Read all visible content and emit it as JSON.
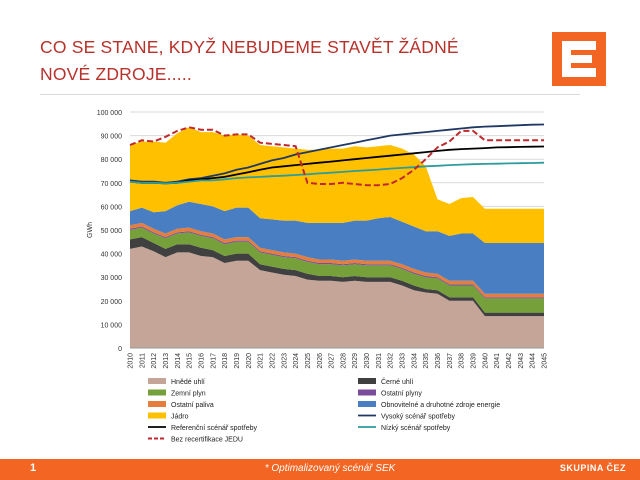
{
  "slide": {
    "title": "CO SE STANE, KDYŽ NEBUDEME STAVĚT ŽÁDNÉ NOVÉ ZDROJE.....",
    "page_number": "1",
    "footnote": "* Optimalizovaný scénář SEK",
    "brand": "SKUPINA ČEZ"
  },
  "colors": {
    "accent": "#f26522",
    "title": "#b8312a",
    "hnede_uhli": "#c4a597",
    "cerne_uhli": "#404040",
    "zemni_plyn": "#76a039",
    "ostatni_plyny": "#7b4b9c",
    "ostatni_paliva": "#e57e3c",
    "obnovitelne": "#4a7ec2",
    "jadro": "#ffc000",
    "vysoky": "#1f3864",
    "referencni": "#000000",
    "nizky": "#2e9c9c",
    "bez_recertifikace": "#c0282d"
  },
  "icons": {
    "logo": "cez-logo-icon"
  },
  "chart_data": {
    "type": "area",
    "ylabel": "GWh",
    "ylim": [
      0,
      100000
    ],
    "yticks": [
      "0",
      "10 000",
      "20 000",
      "30 000",
      "40 000",
      "50 000",
      "60 000",
      "70 000",
      "80 000",
      "90 000",
      "100 000"
    ],
    "x": [
      "2010",
      "2011",
      "2012",
      "2013",
      "2014",
      "2015",
      "2016",
      "2017",
      "2018",
      "2019",
      "2020",
      "2021",
      "2022",
      "2023",
      "2024",
      "2025",
      "2026",
      "2027",
      "2028",
      "2029",
      "2030",
      "2031",
      "2032",
      "2033",
      "2034",
      "2035",
      "2036",
      "2037",
      "2038",
      "2039",
      "2040",
      "2041",
      "2042",
      "2043",
      "2044",
      "2045"
    ],
    "stacked_series": [
      {
        "name": "Hnědé uhlí",
        "color_key": "hnede_uhli",
        "values": [
          42000,
          43000,
          41000,
          38500,
          40500,
          40500,
          39000,
          38500,
          36000,
          37000,
          37000,
          33000,
          32000,
          31000,
          30500,
          29000,
          28500,
          28500,
          28000,
          28500,
          28000,
          28000,
          28000,
          26500,
          24500,
          23500,
          23000,
          20000,
          20000,
          20000,
          13500,
          13500,
          13500,
          13500,
          13500,
          13500
        ]
      },
      {
        "name": "Černé uhlí",
        "color_key": "cerne_uhli",
        "values": [
          4000,
          4000,
          3500,
          3500,
          3500,
          3500,
          3500,
          3000,
          3000,
          3000,
          3000,
          2500,
          2500,
          2500,
          2500,
          2500,
          2000,
          2000,
          2000,
          2000,
          2000,
          2000,
          2000,
          2000,
          2000,
          1500,
          1500,
          1500,
          1500,
          1500,
          1500,
          1500,
          1500,
          1500,
          1500,
          1500
        ]
      },
      {
        "name": "Zemní plyn",
        "color_key": "zemni_plyn",
        "values": [
          4000,
          4000,
          4000,
          4500,
          4500,
          5000,
          5000,
          5000,
          5000,
          5000,
          5000,
          5000,
          5000,
          5000,
          5000,
          5000,
          5000,
          5000,
          5000,
          5000,
          5000,
          5000,
          5000,
          5000,
          5000,
          5000,
          5000,
          5000,
          5000,
          5000,
          6000,
          6000,
          6000,
          6000,
          6000,
          6000
        ]
      },
      {
        "name": "Ostatní plyny",
        "color_key": "ostatni_plyny",
        "values": [
          500,
          500,
          500,
          500,
          500,
          500,
          500,
          500,
          500,
          500,
          500,
          500,
          500,
          500,
          500,
          500,
          500,
          500,
          500,
          500,
          500,
          500,
          500,
          500,
          500,
          500,
          500,
          500,
          500,
          500,
          500,
          500,
          500,
          500,
          500,
          500
        ]
      },
      {
        "name": "Ostatní paliva",
        "color_key": "ostatni_paliva",
        "values": [
          1500,
          1500,
          1500,
          1500,
          1500,
          1500,
          1500,
          1500,
          1500,
          1500,
          1500,
          1500,
          1500,
          1500,
          1500,
          1500,
          1500,
          1500,
          1500,
          1500,
          1500,
          1500,
          1500,
          1500,
          1500,
          1500,
          1500,
          1500,
          1500,
          1500,
          1500,
          1500,
          1500,
          1500,
          1500,
          1500
        ]
      },
      {
        "name": "Obnovitelné a druhotné zdroje energie",
        "color_key": "obnovitelne",
        "values": [
          6000,
          6500,
          7000,
          9500,
          10000,
          11000,
          11500,
          11500,
          12000,
          12500,
          12500,
          12500,
          13000,
          13500,
          14000,
          14500,
          15500,
          15500,
          16000,
          16500,
          17000,
          18000,
          18500,
          18000,
          18000,
          17500,
          18000,
          19000,
          20000,
          20000,
          21500,
          21500,
          21500,
          21500,
          21500,
          21500
        ]
      },
      {
        "name": "Jádro",
        "color_key": "jadro",
        "values": [
          28000,
          28000,
          30000,
          29000,
          30500,
          31500,
          30500,
          31500,
          32000,
          31000,
          30500,
          31000,
          31000,
          31000,
          30500,
          31000,
          31000,
          31500,
          31500,
          31500,
          31000,
          30500,
          30500,
          31000,
          30500,
          27500,
          13500,
          13500,
          15000,
          15500,
          14500,
          14500,
          14500,
          14500,
          14500,
          14500
        ]
      }
    ],
    "line_series": [
      {
        "name": "Vysoký scénář spotřeby",
        "color_key": "vysoky",
        "dashed": false,
        "values": [
          71000,
          70500,
          70500,
          70000,
          70500,
          71500,
          72000,
          73000,
          74000,
          75500,
          76500,
          78000,
          79500,
          80500,
          82000,
          83000,
          84000,
          85000,
          86000,
          87000,
          88000,
          89000,
          90000,
          90500,
          91000,
          91500,
          92000,
          92500,
          93000,
          93500,
          93800,
          94000,
          94200,
          94400,
          94600,
          94700
        ]
      },
      {
        "name": "Referenční scénář spotřeby",
        "color_key": "referencni",
        "dashed": false,
        "values": [
          70500,
          70000,
          70000,
          69800,
          70000,
          71000,
          71500,
          72000,
          72500,
          73500,
          74500,
          75500,
          76500,
          77000,
          77500,
          78000,
          78500,
          79000,
          79500,
          80000,
          80500,
          81000,
          81500,
          82000,
          82500,
          83000,
          83500,
          84000,
          84300,
          84500,
          84700,
          85000,
          85100,
          85200,
          85300,
          85400
        ]
      },
      {
        "name": "Nízký scénář spotřeby",
        "color_key": "nizky",
        "dashed": false,
        "values": [
          70500,
          70000,
          70000,
          69800,
          70000,
          70500,
          71000,
          71000,
          71500,
          72000,
          72300,
          72500,
          72800,
          73000,
          73300,
          73600,
          74000,
          74300,
          74600,
          75000,
          75300,
          75600,
          76000,
          76300,
          76600,
          77000,
          77200,
          77500,
          77700,
          77900,
          78000,
          78100,
          78200,
          78300,
          78400,
          78500
        ]
      },
      {
        "name": "Bez recertifikace JEDU",
        "color_key": "bez_recertifikace",
        "dashed": true,
        "values": [
          86000,
          88000,
          87500,
          89500,
          92000,
          93500,
          92500,
          92500,
          90000,
          90500,
          90500,
          87000,
          86500,
          86000,
          85500,
          70000,
          69500,
          69500,
          70000,
          69500,
          69000,
          69000,
          69500,
          72000,
          75500,
          80000,
          85000,
          87500,
          92000,
          92000,
          88000,
          88000,
          88000,
          88000,
          88000,
          88000
        ]
      }
    ],
    "legend_placement": "bottom"
  }
}
